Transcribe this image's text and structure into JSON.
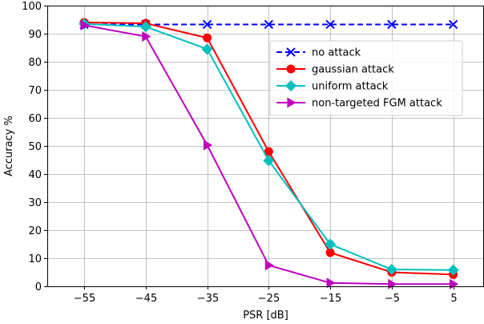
{
  "chart_data": {
    "type": "line",
    "xlabel": "PSR [dB]",
    "ylabel": "Accuracy %",
    "x": [
      -55,
      -45,
      -35,
      -25,
      -15,
      -5,
      5
    ],
    "xticks": [
      "−55",
      "−45",
      "−35",
      "−25",
      "−15",
      "−5",
      "5"
    ],
    "yticks": [
      "0",
      "10",
      "20",
      "30",
      "40",
      "50",
      "60",
      "70",
      "80",
      "90",
      "100"
    ],
    "xlim": [
      -61,
      10
    ],
    "ylim": [
      0,
      100
    ],
    "grid": true,
    "legend_position": "upper-right",
    "series": [
      {
        "name": "no attack",
        "values": [
          93.3,
          93.3,
          93.3,
          93.3,
          93.3,
          93.3,
          93.3
        ],
        "color": "#0000ff",
        "marker": "x",
        "linestyle": "dashed"
      },
      {
        "name": "gaussian attack",
        "values": [
          94.0,
          93.7,
          88.5,
          48.0,
          12.0,
          5.0,
          4.2
        ],
        "color": "#ff0000",
        "marker": "circle",
        "linestyle": "solid"
      },
      {
        "name": "uniform attack",
        "values": [
          93.5,
          92.5,
          84.5,
          44.8,
          15.0,
          6.0,
          5.8
        ],
        "color": "#00bfbf",
        "marker": "diamond",
        "linestyle": "solid"
      },
      {
        "name": "non-targeted FGM attack",
        "values": [
          93.0,
          89.0,
          50.3,
          7.5,
          1.2,
          0.8,
          0.8
        ],
        "color": "#bf00bf",
        "marker": "triangle-right",
        "linestyle": "solid"
      }
    ]
  }
}
